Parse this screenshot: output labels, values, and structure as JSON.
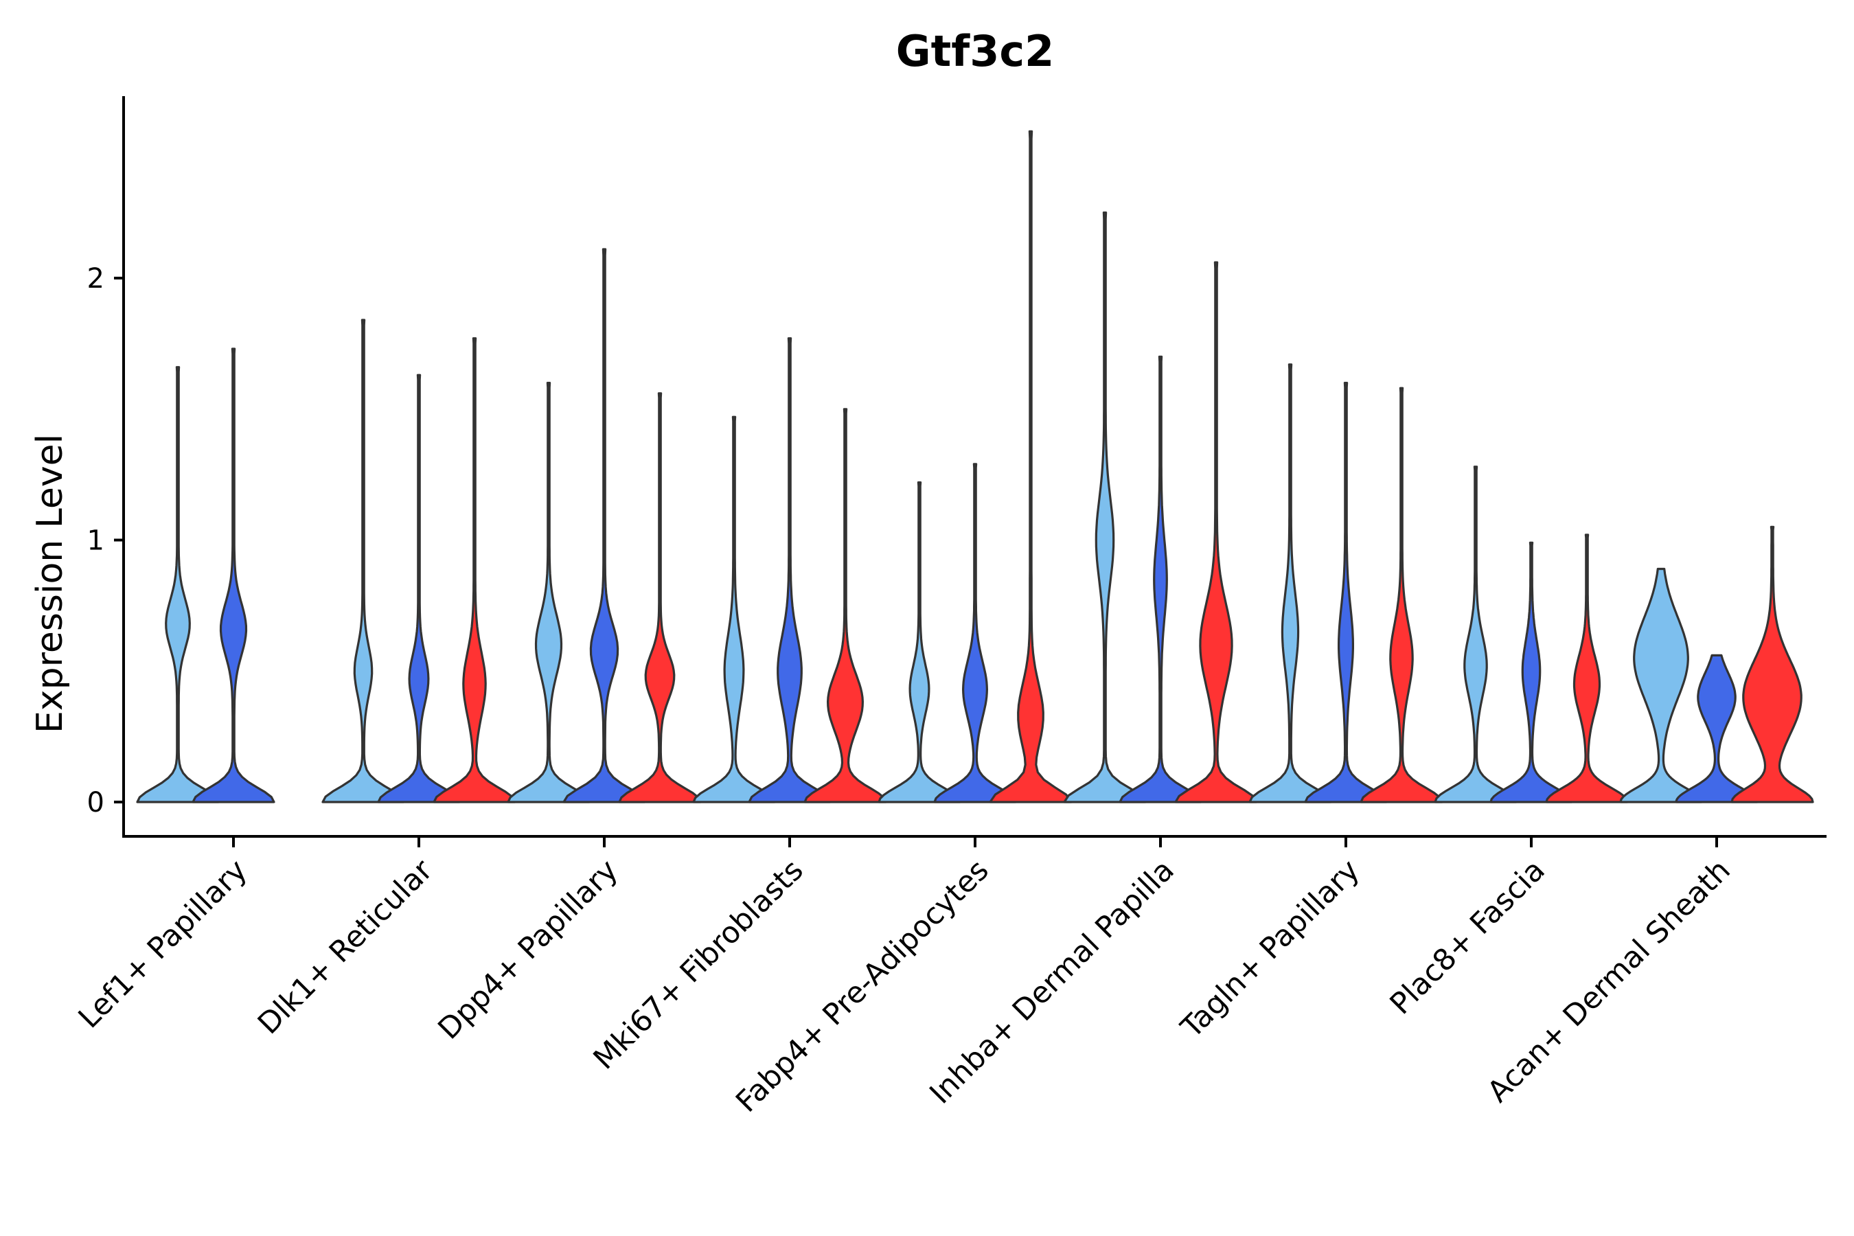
{
  "chart_data": {
    "type": "violin",
    "title": "Gtf3c2",
    "xlabel": "",
    "ylabel": "Expression Level",
    "ylim": [
      -0.13,
      2.7
    ],
    "yticks": [
      0,
      1,
      2
    ],
    "grid": false,
    "legend": "none",
    "group_colors": [
      "#7DBFEE",
      "#4169E8",
      "#FF3333"
    ],
    "categories": [
      "Lef1+ Papillary",
      "Dlk1+ Reticular",
      "Dpp4+ Papillary",
      "Mki67+ Fibroblasts",
      "Fabp4+ Pre-Adipocytes",
      "Inhba+ Dermal Papilla",
      "Tagln+ Papillary",
      "Plac8+ Fascia",
      "Acan+ Dermal Sheath"
    ],
    "violins": [
      {
        "category": 0,
        "group": 0,
        "max": 1.66,
        "base_w": 1.0,
        "mode": 0.68,
        "mode_w": 0.28,
        "mode_s": 0.13
      },
      {
        "category": 0,
        "group": 1,
        "max": 1.73,
        "base_w": 1.0,
        "mode": 0.66,
        "mode_w": 0.3,
        "mode_s": 0.14
      },
      {
        "category": 1,
        "group": 0,
        "max": 1.84,
        "base_w": 1.0,
        "mode": 0.5,
        "mode_w": 0.2,
        "mode_s": 0.13
      },
      {
        "category": 1,
        "group": 1,
        "max": 1.63,
        "base_w": 1.0,
        "mode": 0.47,
        "mode_w": 0.22,
        "mode_s": 0.13
      },
      {
        "category": 1,
        "group": 2,
        "max": 1.77,
        "base_w": 1.0,
        "mode": 0.45,
        "mode_w": 0.26,
        "mode_s": 0.17
      },
      {
        "category": 2,
        "group": 0,
        "max": 1.6,
        "base_w": 1.0,
        "mode": 0.6,
        "mode_w": 0.3,
        "mode_s": 0.16
      },
      {
        "category": 2,
        "group": 1,
        "max": 2.11,
        "base_w": 1.0,
        "mode": 0.58,
        "mode_w": 0.32,
        "mode_s": 0.14
      },
      {
        "category": 2,
        "group": 2,
        "max": 1.56,
        "base_w": 1.0,
        "mode": 0.48,
        "mode_w": 0.34,
        "mode_s": 0.12
      },
      {
        "category": 3,
        "group": 0,
        "max": 1.47,
        "base_w": 1.0,
        "mode": 0.5,
        "mode_w": 0.22,
        "mode_s": 0.19
      },
      {
        "category": 3,
        "group": 1,
        "max": 1.77,
        "base_w": 1.0,
        "mode": 0.5,
        "mode_w": 0.28,
        "mode_s": 0.19
      },
      {
        "category": 3,
        "group": 2,
        "max": 1.5,
        "base_w": 1.0,
        "mode": 0.38,
        "mode_w": 0.42,
        "mode_s": 0.15
      },
      {
        "category": 4,
        "group": 0,
        "max": 1.22,
        "base_w": 1.0,
        "mode": 0.43,
        "mode_w": 0.22,
        "mode_s": 0.13
      },
      {
        "category": 4,
        "group": 1,
        "max": 1.29,
        "base_w": 1.0,
        "mode": 0.43,
        "mode_w": 0.28,
        "mode_s": 0.15
      },
      {
        "category": 4,
        "group": 2,
        "max": 2.56,
        "base_w": 1.0,
        "mode": 0.33,
        "mode_w": 0.3,
        "mode_s": 0.17
      },
      {
        "category": 5,
        "group": 0,
        "max": 2.25,
        "base_w": 1.0,
        "mode": 1.0,
        "mode_w": 0.2,
        "mode_s": 0.22
      },
      {
        "category": 5,
        "group": 1,
        "max": 1.7,
        "base_w": 1.0,
        "mode": 0.85,
        "mode_w": 0.14,
        "mode_s": 0.2
      },
      {
        "category": 5,
        "group": 2,
        "max": 2.06,
        "base_w": 1.0,
        "mode": 0.6,
        "mode_w": 0.38,
        "mode_s": 0.22
      },
      {
        "category": 6,
        "group": 0,
        "max": 1.67,
        "base_w": 1.0,
        "mode": 0.65,
        "mode_w": 0.18,
        "mode_s": 0.2
      },
      {
        "category": 6,
        "group": 1,
        "max": 1.6,
        "base_w": 1.0,
        "mode": 0.6,
        "mode_w": 0.16,
        "mode_s": 0.2
      },
      {
        "category": 6,
        "group": 2,
        "max": 1.58,
        "base_w": 1.0,
        "mode": 0.55,
        "mode_w": 0.26,
        "mode_s": 0.18
      },
      {
        "category": 7,
        "group": 0,
        "max": 1.28,
        "base_w": 1.0,
        "mode": 0.52,
        "mode_w": 0.26,
        "mode_s": 0.16
      },
      {
        "category": 7,
        "group": 1,
        "max": 0.99,
        "base_w": 1.0,
        "mode": 0.5,
        "mode_w": 0.2,
        "mode_s": 0.16
      },
      {
        "category": 7,
        "group": 2,
        "max": 1.02,
        "base_w": 1.0,
        "mode": 0.45,
        "mode_w": 0.3,
        "mode_s": 0.15
      },
      {
        "category": 8,
        "group": 0,
        "max": 0.89,
        "base_w": 1.0,
        "mode": 0.55,
        "mode_w": 0.66,
        "mode_s": 0.22
      },
      {
        "category": 8,
        "group": 1,
        "max": 0.56,
        "base_w": 1.0,
        "mode": 0.4,
        "mode_w": 0.45,
        "mode_s": 0.13
      },
      {
        "category": 8,
        "group": 2,
        "max": 1.05,
        "base_w": 1.0,
        "mode": 0.4,
        "mode_w": 0.72,
        "mode_s": 0.2
      }
    ]
  }
}
